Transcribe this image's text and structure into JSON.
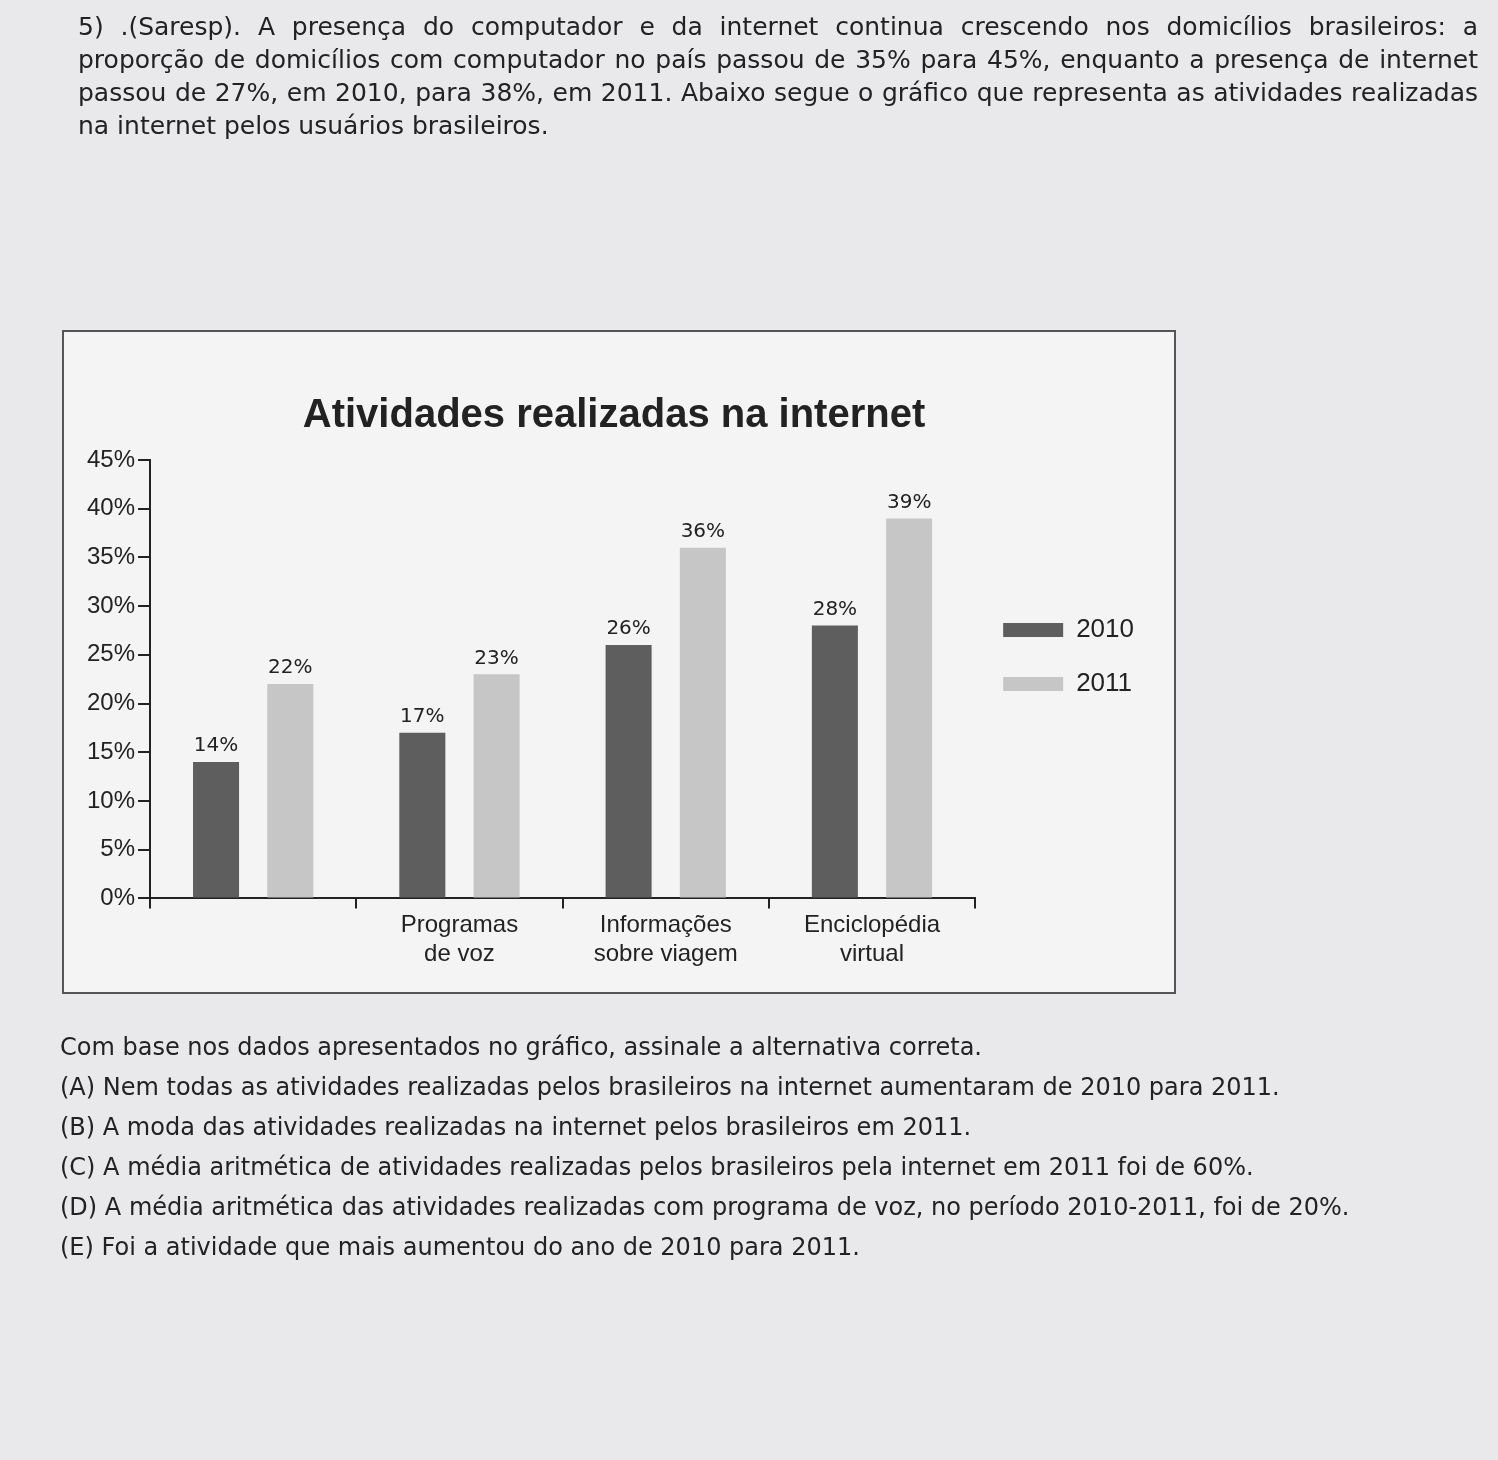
{
  "chart_data": {
    "type": "bar",
    "title": "Atividades realizadas na internet",
    "categories": [
      null,
      "Programas de voz",
      "Informações sobre viagem",
      "Enciclopédia virtual"
    ],
    "series": [
      {
        "name": "2010",
        "color": "#5e5e5e",
        "values": [
          14,
          17,
          26,
          28
        ],
        "value_labels": [
          "14%",
          "17%",
          "26%",
          "28%"
        ]
      },
      {
        "name": "2011",
        "color": "#c6c6c6",
        "values": [
          22,
          23,
          36,
          39
        ],
        "value_labels": [
          "22%",
          "23%",
          "36%",
          "39%"
        ]
      }
    ],
    "ylim": [
      0,
      45
    ],
    "yticks": [
      {
        "value": 0,
        "label": "0%"
      },
      {
        "value": 5,
        "label": "5%"
      },
      {
        "value": 10,
        "label": "10%"
      },
      {
        "value": 15,
        "label": "15%"
      },
      {
        "value": 20,
        "label": "20%"
      },
      {
        "value": 25,
        "label": "25%"
      },
      {
        "value": 30,
        "label": "30%"
      },
      {
        "value": 35,
        "label": "35%"
      },
      {
        "value": 40,
        "label": "40%"
      },
      {
        "value": 45,
        "label": "45%"
      }
    ],
    "grid": false,
    "legend": "right",
    "annotations": [
      "5) .(Saresp). A presença do computador e da internet continua crescendo nos domicílios brasileiros: a proporção de domicílios com computador no país passou de 35% para 45%, enquanto a presença de internet passou de 27%, em 2010, para 38%, em 2011. Abaixo segue o gráfico que representa as atividades realizadas na internet pelos usuários brasileiros.",
      "Com base nos dados apresentados no gráfico, assinale a alternativa correta.",
      "(A) Nem todas as atividades realizadas pelos brasileiros na internet aumentaram de 2010 para 2011.",
      "(B) A moda das atividades realizadas na internet pelos brasileiros em 2011.",
      "(C) A média aritmética de atividades realizadas pelos brasileiros pela internet em 2011 foi de 60%.",
      "(D) A média aritmética das atividades realizadas com programa de voz, no período 2010-2011, foi de 20%.",
      "(E) Foi a atividade que mais aumentou do ano de 2010 para 2011."
    ]
  }
}
